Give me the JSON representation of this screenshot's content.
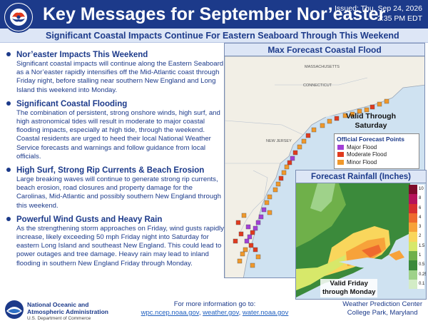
{
  "header": {
    "title": "Key Messages for September Nor’easter",
    "issued_line1": "Issued: Thu, Sep 24, 2026",
    "issued_line2": "2:35 PM EDT",
    "logo_text": "NATIONAL WEATHER SERVICE"
  },
  "subtitle": "Significant Coastal Impacts Continue For Eastern Seaboard Through This Weekend",
  "sections": [
    {
      "title": "Nor’easter Impacts This Weekend",
      "body": "Significant coastal impacts will continue along the Eastern Seaboard as a Nor’easter rapidly intensifies off the Mid-Atlantic coast through Friday night, before stalling near southern New England and Long Island this weekend into Monday."
    },
    {
      "title": "Significant Coastal Flooding",
      "body": "The combination of persistent, strong onshore winds, high surf, and high astronomical tides will result in moderate to major coastal flooding impacts, especially at high tide, through the weekend. Coastal residents are urged to heed their local National Weather Service forecasts and warnings and follow guidance from local officials."
    },
    {
      "title": "High Surf, Strong Rip Currents & Beach Erosion",
      "body": "Large breaking waves will continue to generate strong rip currents, beach erosion, road closures and property damage for the Carolinas, Mid-Atlantic and possibly southern New England through this weekend."
    },
    {
      "title": "Powerful Wind Gusts and Heavy Rain",
      "body": "As the strengthening storm approaches on Friday, wind gusts rapidly increase, likely exceeding 50 mph Friday night into Saturday for eastern Long Island and southeast New England. This could lead to power outages and tree damage. Heavy rain may lead to inland flooding in southern New England Friday through Monday."
    }
  ],
  "coastal_map": {
    "title": "Max Forecast Coastal Flood",
    "valid_line1": "Valid Through",
    "valid_line2": "Saturday",
    "state_labels": [
      "MASSACHUSETTS",
      "CONNECTICUT",
      "NEW JERSEY"
    ],
    "legend": {
      "title": "Official Forecast Points",
      "items": [
        {
          "label": "Major Flood",
          "color": "#a23fd6"
        },
        {
          "label": "Moderate Flood",
          "color": "#e03a1e"
        },
        {
          "label": "Minor Flood",
          "color": "#f0982a"
        }
      ]
    }
  },
  "rain_map": {
    "title": "Forecast Rainfall (Inches)",
    "valid_line1": "Valid Friday",
    "valid_line2": "through Monday",
    "scale": [
      {
        "label": "10",
        "color": "#7d0a2a"
      },
      {
        "label": "8",
        "color": "#b5135a"
      },
      {
        "label": "6",
        "color": "#d62f2f"
      },
      {
        "label": "4",
        "color": "#ee6a2e"
      },
      {
        "label": "3",
        "color": "#f7a23a"
      },
      {
        "label": "2",
        "color": "#f9d65c"
      },
      {
        "label": "1.5",
        "color": "#d7e86a"
      },
      {
        "label": "1",
        "color": "#6fb04a"
      },
      {
        "label": "0.5",
        "color": "#3b8a3b"
      },
      {
        "label": "0.25",
        "color": "#9fd28a"
      },
      {
        "label": "0.1",
        "color": "#d3ecc6"
      }
    ]
  },
  "footer": {
    "noaa_line1": "National Oceanic and",
    "noaa_line2": "Atmospheric Administration",
    "noaa_line3": "U.S. Department of Commerce",
    "more_info": "For more information go to:",
    "link1": "wpc.ncep.noaa.gov",
    "link2": "weather.gov",
    "link3": "water.noaa.gov",
    "center_line1": "Weather Prediction Center",
    "center_line2": "College Park, Maryland"
  }
}
